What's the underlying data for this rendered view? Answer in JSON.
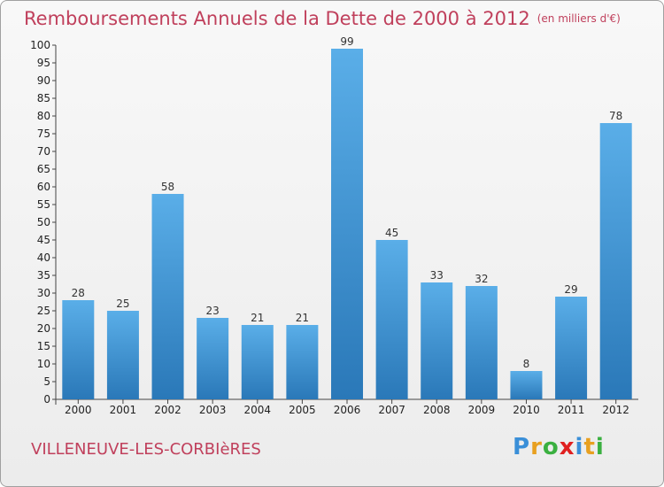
{
  "chart_data": {
    "type": "bar",
    "title": "Remboursements Annuels de la Dette de 2000 à 2012",
    "subtitle": "(en milliers d'€)",
    "categories": [
      "2000",
      "2001",
      "2002",
      "2003",
      "2004",
      "2005",
      "2006",
      "2007",
      "2008",
      "2009",
      "2010",
      "2011",
      "2012"
    ],
    "values": [
      28,
      25,
      58,
      23,
      21,
      21,
      99,
      45,
      33,
      32,
      8,
      29,
      78
    ],
    "ylim": [
      0,
      100
    ],
    "yticks": [
      0,
      5,
      10,
      15,
      20,
      25,
      30,
      35,
      40,
      45,
      50,
      55,
      60,
      65,
      70,
      75,
      80,
      85,
      90,
      95,
      100
    ],
    "grid": false,
    "bar_color_top": "#5aaee8",
    "bar_color_bottom": "#2a78b8",
    "data_labels": true
  },
  "commune": "VILLENEUVE-LES-CORBIèRES",
  "logo": {
    "letters": [
      "P",
      "r",
      "o",
      "x",
      "i",
      "t",
      "i"
    ],
    "colors": [
      "#3a8fd8",
      "#e8a020",
      "#3ab040",
      "#e02020",
      "#3a8fd8",
      "#e8a020",
      "#3ab040"
    ]
  },
  "colors": {
    "title": "#c0405c",
    "axis": "#222222"
  }
}
